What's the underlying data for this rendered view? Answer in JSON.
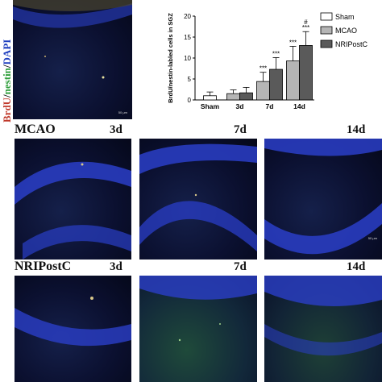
{
  "side_label": {
    "parts": [
      {
        "text": "BrdU",
        "color": "#c0392b"
      },
      {
        "text": "/",
        "color": "#111111"
      },
      {
        "text": "nestin",
        "color": "#2e9e3a"
      },
      {
        "text": "/",
        "color": "#111111"
      },
      {
        "text": "DAPI",
        "color": "#1f3fbf"
      }
    ]
  },
  "rows": [
    {
      "label": "MCAO",
      "days": [
        "3d",
        "7d",
        "14d"
      ]
    },
    {
      "label": "NRIPostC",
      "days": [
        "3d",
        "7d",
        "14d"
      ]
    }
  ],
  "scale_text": "50 μm",
  "chart_data": {
    "type": "bar",
    "categories": [
      "Sham",
      "3d",
      "7d",
      "14d"
    ],
    "ylabel": "BrdU/nestin-labled cells in SGZ",
    "ylim": [
      0,
      20
    ],
    "yticks": [
      0,
      5,
      10,
      15,
      20
    ],
    "series": [
      {
        "name": "Sham",
        "color": "#ffffff",
        "values": [
          1.0,
          null,
          null,
          null
        ],
        "errors": [
          0.9,
          null,
          null,
          null
        ]
      },
      {
        "name": "MCAO",
        "color": "#b5b5b5",
        "values": [
          null,
          1.5,
          4.4,
          9.3
        ],
        "errors": [
          null,
          0.9,
          2.2,
          3.5
        ]
      },
      {
        "name": "NRIPostC",
        "color": "#5a5a5a",
        "values": [
          null,
          1.7,
          7.3,
          13.0
        ],
        "errors": [
          null,
          1.3,
          2.8,
          3.3
        ]
      }
    ],
    "annotations": [
      {
        "category": "7d",
        "series": "MCAO",
        "text": "***"
      },
      {
        "category": "7d",
        "series": "NRIPostC",
        "text": "***"
      },
      {
        "category": "14d",
        "series": "MCAO",
        "text": "***"
      },
      {
        "category": "14d",
        "series": "NRIPostC",
        "text": "***"
      },
      {
        "category": "14d",
        "series": "NRIPostC",
        "text": "#"
      }
    ],
    "legend": [
      "Sham",
      "MCAO",
      "NRIPostC"
    ],
    "legend_position": "top-right"
  }
}
